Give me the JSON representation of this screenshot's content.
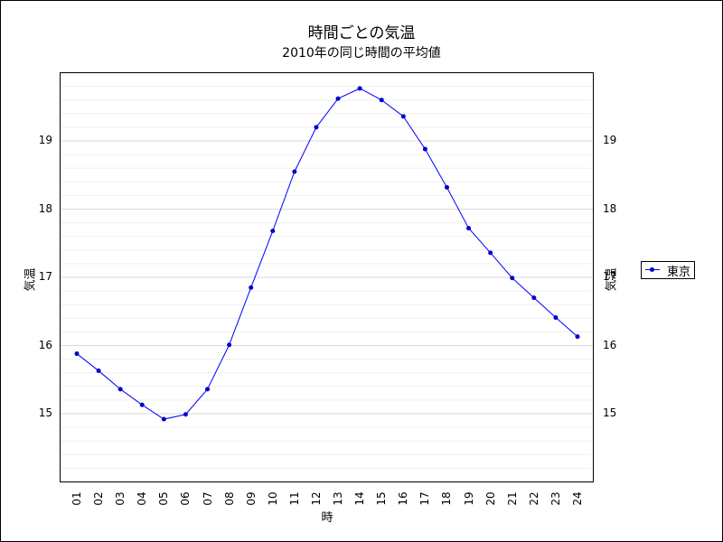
{
  "chart_data": {
    "type": "line",
    "title": "時間ごとの気温",
    "subtitle": "2010年の同じ時間の平均値",
    "xlabel": "時",
    "ylabel": "気温",
    "ylabel_right": "気温",
    "categories": [
      "01",
      "02",
      "03",
      "04",
      "05",
      "06",
      "07",
      "08",
      "09",
      "10",
      "11",
      "12",
      "13",
      "14",
      "15",
      "16",
      "17",
      "18",
      "19",
      "20",
      "21",
      "22",
      "23",
      "24"
    ],
    "series": [
      {
        "name": "東京",
        "color": "#0000ff",
        "values": [
          15.88,
          15.63,
          15.36,
          15.13,
          14.92,
          14.99,
          15.36,
          16.01,
          16.85,
          17.68,
          18.55,
          19.2,
          19.62,
          19.77,
          19.6,
          19.36,
          18.88,
          18.32,
          17.72,
          17.36,
          16.99,
          16.7,
          16.41,
          16.13
        ]
      }
    ],
    "yticks": [
      15,
      16,
      17,
      18,
      19
    ],
    "ylim": [
      14.0,
      20.0
    ],
    "grid": true,
    "minor_grid_step": 0.2,
    "legend_position": "right"
  }
}
